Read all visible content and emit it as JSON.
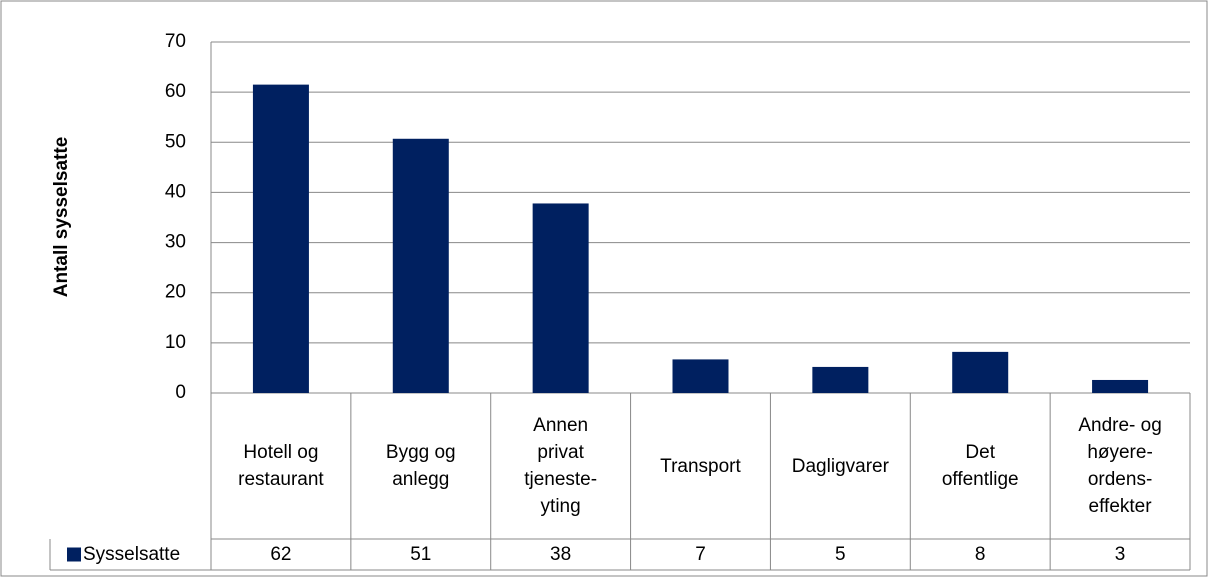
{
  "chart_data": {
    "type": "bar",
    "y_axis_label": "Antall sysselsatte",
    "categories": [
      "Hotell og\nrestaurant",
      "Bygg og\nanlegg",
      "Annen\nprivat\ntjeneste-\nyting",
      "Transport",
      "Dagligvarer",
      "Det\noffentlige",
      "Andre- og\nhøyere-\nordens-\neffekter"
    ],
    "series": [
      {
        "name": "Sysselsatte",
        "color": "#002060",
        "values": [
          61.5,
          50.7,
          37.8,
          6.7,
          5.2,
          8.2,
          2.6
        ],
        "value_labels": [
          "62",
          "51",
          "38",
          "7",
          "5",
          "8",
          "3"
        ]
      }
    ],
    "ylim": [
      0,
      70
    ],
    "yticks": [
      0,
      10,
      20,
      30,
      40,
      50,
      60,
      70
    ],
    "grid": true
  }
}
